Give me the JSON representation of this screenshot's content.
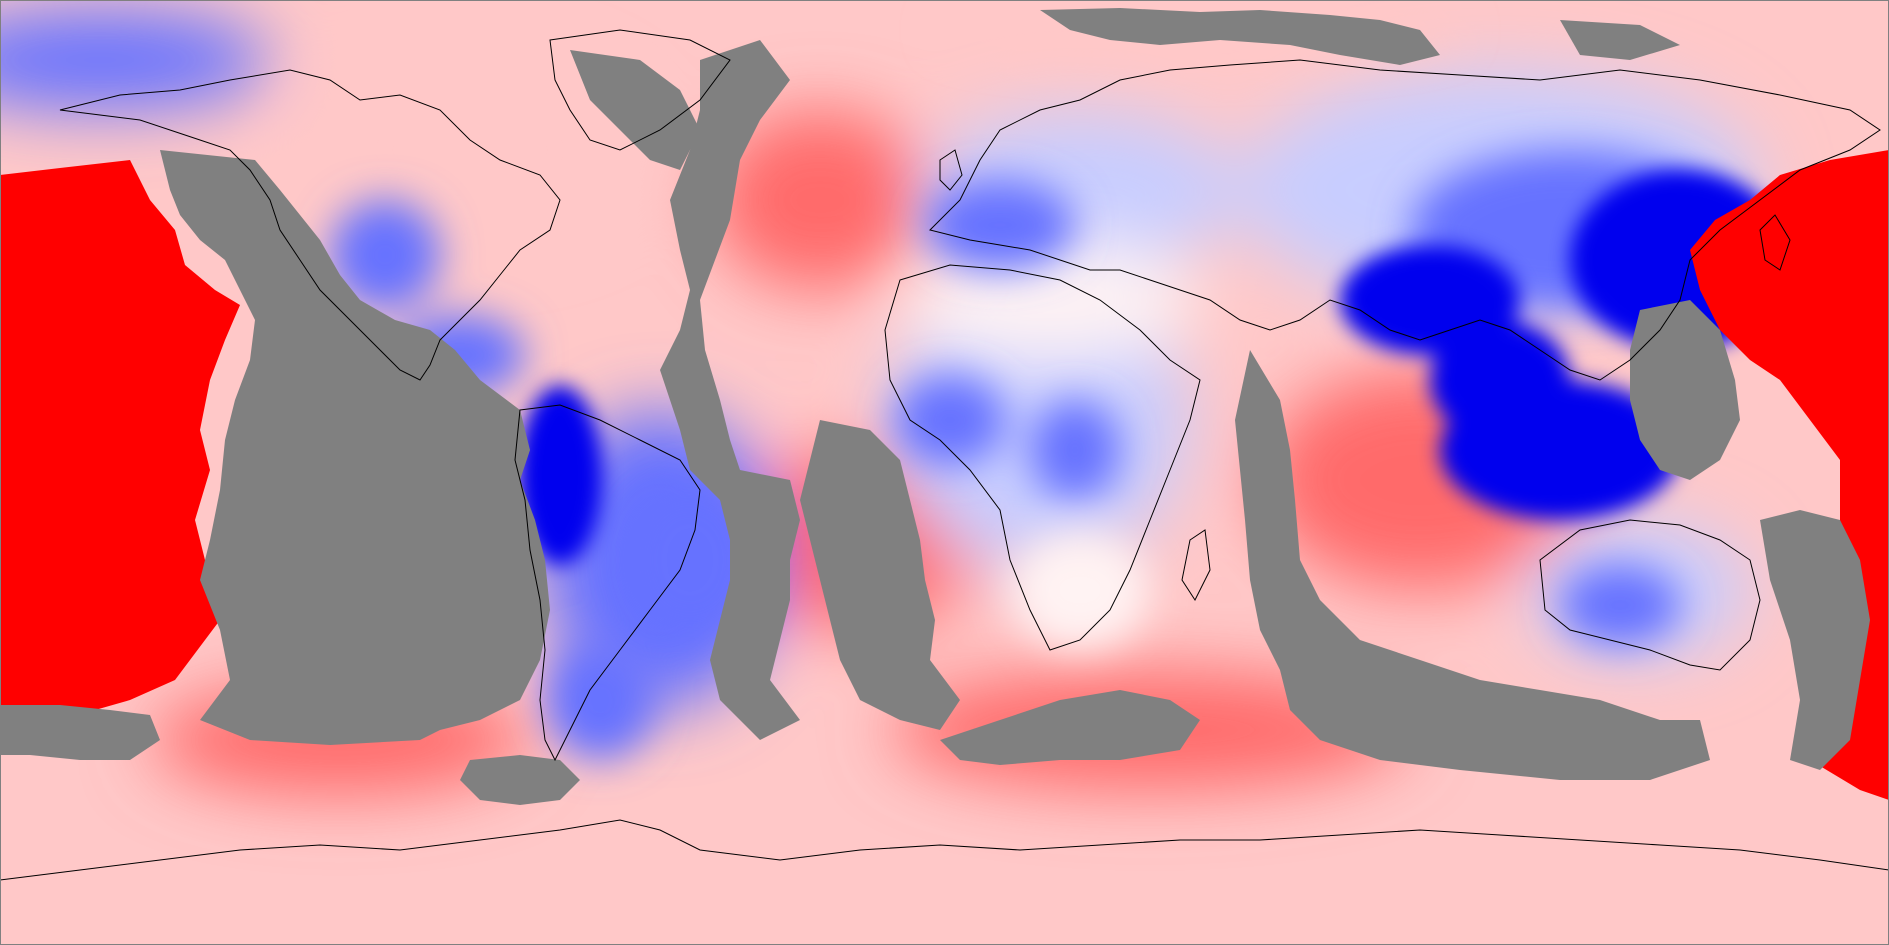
{
  "map": {
    "projection": "equirectangular",
    "extent": {
      "lon": [
        -180,
        180
      ],
      "lat": [
        -90,
        90
      ]
    },
    "colors": {
      "strong_positive": "#ff0000",
      "positive": "#ff6b6b",
      "weak_positive": "#ffc8c8",
      "neutral": "#fff3f3",
      "weak_negative": "#c8cdff",
      "negative": "#6672ff",
      "strong_negative": "#0000ee",
      "masked": "#808080",
      "coastline": "#000000"
    },
    "coastline_style": "thin black outlines",
    "masked_regions_shown": true,
    "legend": "none",
    "grid": false
  }
}
